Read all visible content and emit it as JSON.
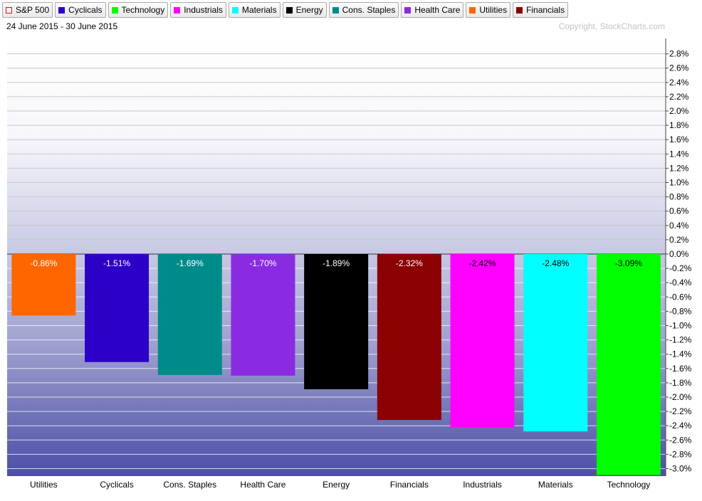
{
  "legend": [
    {
      "label": "S&P 500",
      "color": "#ff0000",
      "hollow": true
    },
    {
      "label": "Cyclicals",
      "color": "#2d00c8"
    },
    {
      "label": "Technology",
      "color": "#00ff00"
    },
    {
      "label": "Industrials",
      "color": "#ff00ff"
    },
    {
      "label": "Materials",
      "color": "#00ffff"
    },
    {
      "label": "Energy",
      "color": "#000000"
    },
    {
      "label": "Cons. Staples",
      "color": "#008b8b"
    },
    {
      "label": "Health Care",
      "color": "#8a2be2"
    },
    {
      "label": "Utilities",
      "color": "#ff6600"
    },
    {
      "label": "Financials",
      "color": "#8b0000"
    }
  ],
  "date_range": "24 June 2015 - 30 June 2015",
  "copyright": "Copyright, StockCharts.com",
  "chart_data": {
    "type": "bar",
    "title": "",
    "xlabel": "",
    "ylabel": "",
    "ylim": [
      -3.1,
      2.95
    ],
    "grid": true,
    "y_axis_side": "right",
    "categories": [
      "Utilities",
      "Cyclicals",
      "Cons. Staples",
      "Health Care",
      "Energy",
      "Financials",
      "Industrials",
      "Materials",
      "Technology"
    ],
    "values": [
      -0.86,
      -1.51,
      -1.69,
      -1.7,
      -1.89,
      -2.32,
      -2.42,
      -2.48,
      -3.09
    ],
    "value_labels": [
      "-0.86%",
      "-1.51%",
      "-1.69%",
      "-1.70%",
      "-1.89%",
      "-2.32%",
      "-2.42%",
      "-2.48%",
      "-3.09%"
    ],
    "colors": [
      "#ff6600",
      "#2d00c8",
      "#008b8b",
      "#8a2be2",
      "#000000",
      "#8b0000",
      "#ff00ff",
      "#00ffff",
      "#00ff00"
    ],
    "label_colors": [
      "#ffffff",
      "#ffffff",
      "#ffffff",
      "#ffffff",
      "#ffffff",
      "#ffffff",
      "#000000",
      "#000000",
      "#000000"
    ],
    "y_ticks": [
      2.8,
      2.6,
      2.4,
      2.2,
      2.0,
      1.8,
      1.6,
      1.4,
      1.2,
      1.0,
      0.8,
      0.6,
      0.4,
      0.2,
      0.0,
      -0.2,
      -0.4,
      -0.6,
      -0.8,
      -1.0,
      -1.2,
      -1.4,
      -1.6,
      -1.8,
      -2.0,
      -2.2,
      -2.4,
      -2.6,
      -2.8,
      -3.0
    ],
    "y_tick_labels": [
      "2.8%",
      "2.6%",
      "2.4%",
      "2.2%",
      "2.0%",
      "1.8%",
      "1.6%",
      "1.4%",
      "1.2%",
      "1.0%",
      "0.8%",
      "0.6%",
      "0.4%",
      "0.2%",
      "0.0%",
      "-0.2%",
      "-0.4%",
      "-0.6%",
      "-0.8%",
      "-1.0%",
      "-1.2%",
      "-1.4%",
      "-1.6%",
      "-1.8%",
      "-2.0%",
      "-2.2%",
      "-2.4%",
      "-2.6%",
      "-2.8%",
      "-3.0%"
    ]
  }
}
